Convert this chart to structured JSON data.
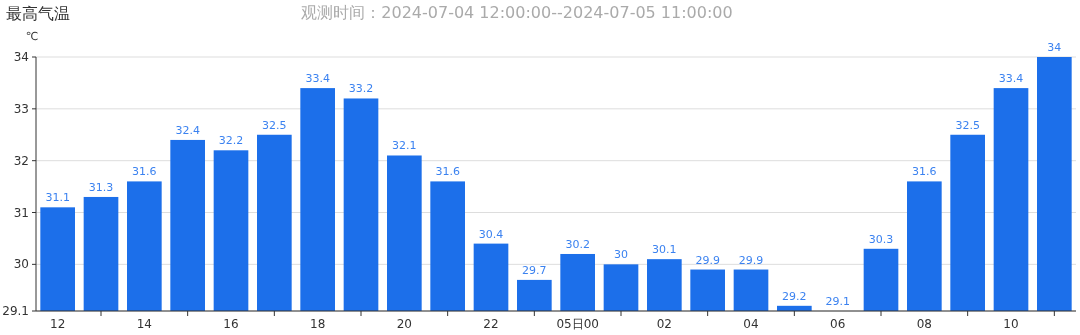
{
  "chart_data": {
    "type": "bar",
    "title": "最高气温",
    "subtitle": "观测时间：2024-07-04 12:00:00--2024-07-05 11:00:00",
    "ylabel": "℃",
    "categories": [
      "12",
      null,
      "14",
      null,
      "16",
      null,
      "18",
      null,
      "20",
      null,
      "22",
      null,
      "05日00",
      null,
      "02",
      null,
      "04",
      null,
      "06",
      null,
      "08",
      null,
      "10",
      null
    ],
    "values": [
      31.1,
      31.3,
      31.6,
      32.4,
      32.2,
      32.5,
      33.4,
      33.2,
      32.1,
      31.6,
      30.4,
      29.7,
      30.2,
      30,
      30.1,
      29.9,
      29.9,
      29.2,
      29.1,
      30.3,
      31.6,
      32.5,
      33.4,
      34
    ],
    "color": "#1c6fea",
    "ylim": [
      29.1,
      34
    ],
    "yticks": [
      29.1,
      30,
      31,
      32,
      33,
      34
    ],
    "grid": "y",
    "data_labels": true
  }
}
